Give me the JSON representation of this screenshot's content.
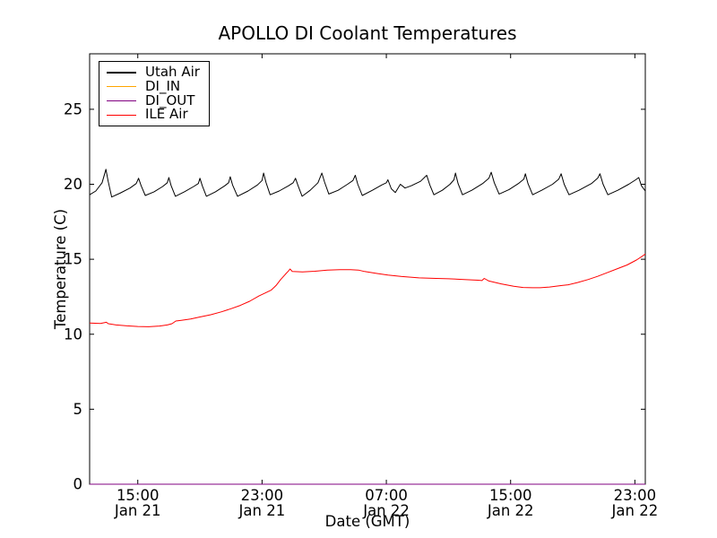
{
  "figure": {
    "title": "APOLLO DI Coolant Temperatures"
  },
  "chart_data": {
    "type": "line",
    "title": "APOLLO DI Coolant Temperatures",
    "xlabel": "Date (GMT)",
    "ylabel": "Temperature (C)",
    "x_unit_note": "t = hours since Jan 21 00:00 GMT",
    "xlim": [
      11.9,
      47.67
    ],
    "ylim": [
      0,
      28.7
    ],
    "grid": false,
    "legend_position": "upper left",
    "y_ticks": [
      0,
      5,
      10,
      15,
      20,
      25
    ],
    "x_ticks": [
      {
        "t": 15,
        "time": "15:00",
        "date": "Jan 21"
      },
      {
        "t": 23,
        "time": "23:00",
        "date": "Jan 21"
      },
      {
        "t": 31,
        "time": "07:00",
        "date": "Jan 22"
      },
      {
        "t": 39,
        "time": "15:00",
        "date": "Jan 22"
      },
      {
        "t": 47,
        "time": "23:00",
        "date": "Jan 22"
      }
    ],
    "series": [
      {
        "name": "Utah Air",
        "color": "#000000",
        "points": [
          [
            11.9,
            19.3
          ],
          [
            12.3,
            19.55
          ],
          [
            12.7,
            20.1
          ],
          [
            12.95,
            21.0
          ],
          [
            13.08,
            20.25
          ],
          [
            13.32,
            19.15
          ],
          [
            13.85,
            19.4
          ],
          [
            14.5,
            19.75
          ],
          [
            14.9,
            20.05
          ],
          [
            15.05,
            20.4
          ],
          [
            15.22,
            19.9
          ],
          [
            15.48,
            19.25
          ],
          [
            16.05,
            19.5
          ],
          [
            16.6,
            19.85
          ],
          [
            16.9,
            20.1
          ],
          [
            17.0,
            20.45
          ],
          [
            17.15,
            19.9
          ],
          [
            17.42,
            19.2
          ],
          [
            18.0,
            19.5
          ],
          [
            18.6,
            19.85
          ],
          [
            18.9,
            20.05
          ],
          [
            19.0,
            20.4
          ],
          [
            19.15,
            19.9
          ],
          [
            19.42,
            19.2
          ],
          [
            20.0,
            19.5
          ],
          [
            20.6,
            19.9
          ],
          [
            20.85,
            20.1
          ],
          [
            20.95,
            20.5
          ],
          [
            21.1,
            19.95
          ],
          [
            21.42,
            19.2
          ],
          [
            22.1,
            19.55
          ],
          [
            22.7,
            19.95
          ],
          [
            23.0,
            20.25
          ],
          [
            23.1,
            20.75
          ],
          [
            23.26,
            20.1
          ],
          [
            23.52,
            19.3
          ],
          [
            24.1,
            19.55
          ],
          [
            24.7,
            19.9
          ],
          [
            25.0,
            20.1
          ],
          [
            25.15,
            20.4
          ],
          [
            25.32,
            19.9
          ],
          [
            25.58,
            19.2
          ],
          [
            26.1,
            19.6
          ],
          [
            26.6,
            20.1
          ],
          [
            26.85,
            20.75
          ],
          [
            27.02,
            20.15
          ],
          [
            27.3,
            19.35
          ],
          [
            27.9,
            19.6
          ],
          [
            28.5,
            20.0
          ],
          [
            28.85,
            20.25
          ],
          [
            29.0,
            20.6
          ],
          [
            29.16,
            20.0
          ],
          [
            29.45,
            19.25
          ],
          [
            30.1,
            19.6
          ],
          [
            30.7,
            19.95
          ],
          [
            31.0,
            20.1
          ],
          [
            31.1,
            20.3
          ],
          [
            31.32,
            19.7
          ],
          [
            31.58,
            19.45
          ],
          [
            31.9,
            20.0
          ],
          [
            32.2,
            19.75
          ],
          [
            32.6,
            19.9
          ],
          [
            33.2,
            20.2
          ],
          [
            33.6,
            20.6
          ],
          [
            33.8,
            19.95
          ],
          [
            34.06,
            19.3
          ],
          [
            34.6,
            19.6
          ],
          [
            35.1,
            20.0
          ],
          [
            35.35,
            20.3
          ],
          [
            35.45,
            20.75
          ],
          [
            35.62,
            20.05
          ],
          [
            35.9,
            19.3
          ],
          [
            36.5,
            19.6
          ],
          [
            37.2,
            20.05
          ],
          [
            37.6,
            20.4
          ],
          [
            37.75,
            20.8
          ],
          [
            37.95,
            20.1
          ],
          [
            38.26,
            19.35
          ],
          [
            38.9,
            19.65
          ],
          [
            39.5,
            20.05
          ],
          [
            39.85,
            20.35
          ],
          [
            39.95,
            20.7
          ],
          [
            40.12,
            20.05
          ],
          [
            40.42,
            19.3
          ],
          [
            41.0,
            19.6
          ],
          [
            41.7,
            20.0
          ],
          [
            42.1,
            20.35
          ],
          [
            42.25,
            20.7
          ],
          [
            42.45,
            20.0
          ],
          [
            42.76,
            19.3
          ],
          [
            43.4,
            19.6
          ],
          [
            44.2,
            20.05
          ],
          [
            44.6,
            20.4
          ],
          [
            44.75,
            20.7
          ],
          [
            44.95,
            20.0
          ],
          [
            45.26,
            19.3
          ],
          [
            45.9,
            19.6
          ],
          [
            46.6,
            20.0
          ],
          [
            47.05,
            20.3
          ],
          [
            47.25,
            20.45
          ],
          [
            47.42,
            19.9
          ],
          [
            47.67,
            19.55
          ]
        ]
      },
      {
        "name": "DI_IN",
        "color": "#ffa500",
        "points": [
          [
            11.9,
            0
          ],
          [
            47.67,
            0
          ]
        ]
      },
      {
        "name": "DI_OUT",
        "color": "#800080",
        "points": [
          [
            11.9,
            0
          ],
          [
            47.67,
            0
          ]
        ]
      },
      {
        "name": "ILE Air",
        "color": "#ff0000",
        "points": [
          [
            11.9,
            10.75
          ],
          [
            12.6,
            10.72
          ],
          [
            12.98,
            10.8
          ],
          [
            13.1,
            10.7
          ],
          [
            13.6,
            10.62
          ],
          [
            14.3,
            10.56
          ],
          [
            15.0,
            10.52
          ],
          [
            15.7,
            10.5
          ],
          [
            16.4,
            10.55
          ],
          [
            16.9,
            10.62
          ],
          [
            17.2,
            10.7
          ],
          [
            17.45,
            10.88
          ],
          [
            17.8,
            10.93
          ],
          [
            18.4,
            11.02
          ],
          [
            19.0,
            11.15
          ],
          [
            19.7,
            11.3
          ],
          [
            20.4,
            11.5
          ],
          [
            21.0,
            11.7
          ],
          [
            21.6,
            11.92
          ],
          [
            22.2,
            12.2
          ],
          [
            22.8,
            12.55
          ],
          [
            23.3,
            12.8
          ],
          [
            23.6,
            12.95
          ],
          [
            23.9,
            13.25
          ],
          [
            24.2,
            13.65
          ],
          [
            24.5,
            14.0
          ],
          [
            24.7,
            14.22
          ],
          [
            24.8,
            14.35
          ],
          [
            24.95,
            14.18
          ],
          [
            25.6,
            14.15
          ],
          [
            26.4,
            14.2
          ],
          [
            27.2,
            14.28
          ],
          [
            28.0,
            14.3
          ],
          [
            28.7,
            14.3
          ],
          [
            29.2,
            14.28
          ],
          [
            29.6,
            14.18
          ],
          [
            30.4,
            14.05
          ],
          [
            31.1,
            13.95
          ],
          [
            32.0,
            13.85
          ],
          [
            33.1,
            13.76
          ],
          [
            34.2,
            13.72
          ],
          [
            35.0,
            13.7
          ],
          [
            36.0,
            13.65
          ],
          [
            36.9,
            13.6
          ],
          [
            37.15,
            13.58
          ],
          [
            37.3,
            13.72
          ],
          [
            37.6,
            13.55
          ],
          [
            38.4,
            13.36
          ],
          [
            39.2,
            13.2
          ],
          [
            39.8,
            13.12
          ],
          [
            40.4,
            13.1
          ],
          [
            40.9,
            13.1
          ],
          [
            41.5,
            13.15
          ],
          [
            42.3,
            13.25
          ],
          [
            42.7,
            13.3
          ],
          [
            43.3,
            13.45
          ],
          [
            44.0,
            13.65
          ],
          [
            44.6,
            13.86
          ],
          [
            45.2,
            14.1
          ],
          [
            45.9,
            14.38
          ],
          [
            46.5,
            14.62
          ],
          [
            47.1,
            14.95
          ],
          [
            47.5,
            15.22
          ],
          [
            47.67,
            15.35
          ]
        ]
      }
    ]
  }
}
